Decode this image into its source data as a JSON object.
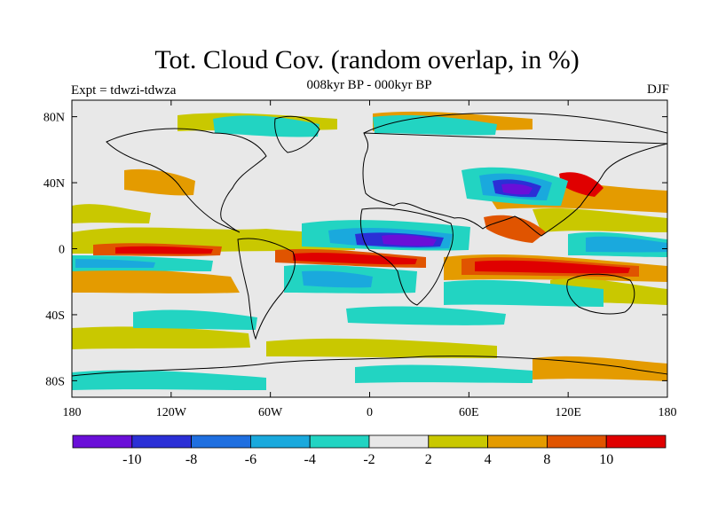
{
  "title": "Tot. Cloud Cov. (random overlap, in %)",
  "subtitle": "008kyr BP - 000kyr BP",
  "experiment": "Expt = tdwzi-tdwza",
  "season": "DJF",
  "map": {
    "lon_range": [
      -180,
      180
    ],
    "lat_range": [
      -90,
      90
    ],
    "x_ticks": [
      {
        "lon": -180,
        "label": "180"
      },
      {
        "lon": -120,
        "label": "120W"
      },
      {
        "lon": -60,
        "label": "60W"
      },
      {
        "lon": 0,
        "label": "0"
      },
      {
        "lon": 60,
        "label": "60E"
      },
      {
        "lon": 120,
        "label": "120E"
      },
      {
        "lon": 180,
        "label": "180"
      }
    ],
    "y_ticks": [
      {
        "lat": 80,
        "label": "80N"
      },
      {
        "lat": 40,
        "label": "40N"
      },
      {
        "lat": 0,
        "label": "0"
      },
      {
        "lat": -40,
        "label": "40S"
      },
      {
        "lat": -80,
        "label": "80S"
      }
    ]
  },
  "colorbar": {
    "colors": [
      "#6a0fd8",
      "#2b2fd6",
      "#1f6fe0",
      "#1aa9dd",
      "#22d4c2",
      "#e8e8e8",
      "#c9c800",
      "#e49b00",
      "#e05400",
      "#e00000"
    ],
    "tick_labels": [
      "-10",
      "-8",
      "-6",
      "-4",
      "-2",
      "2",
      "4",
      "8",
      "10"
    ]
  }
}
